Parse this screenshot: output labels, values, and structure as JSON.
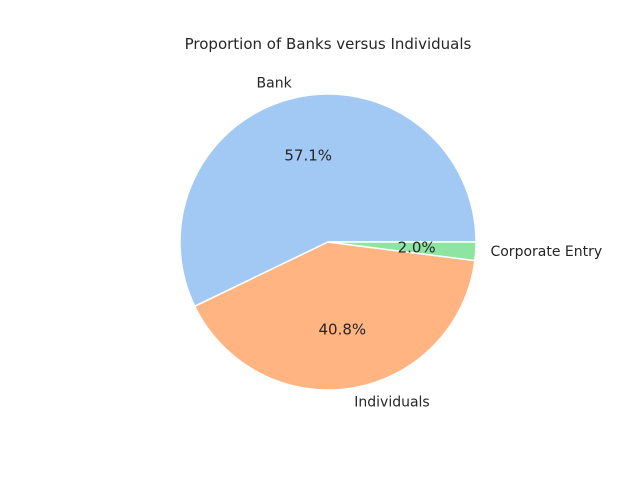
{
  "chart_data": {
    "type": "pie",
    "title": "Proportion of Banks versus Individuals",
    "slices": [
      {
        "label": "Bank",
        "value": 57.1,
        "pct_label": "57.1%",
        "color": "#a1c9f4"
      },
      {
        "label": "Individuals",
        "value": 40.8,
        "pct_label": "40.8%",
        "color": "#ffb482"
      },
      {
        "label": "Corporate Entry",
        "value": 2.0,
        "pct_label": "2.0%",
        "color": "#8de5a1"
      }
    ],
    "start_angle_deg": 0,
    "direction": "counterclockwise"
  }
}
